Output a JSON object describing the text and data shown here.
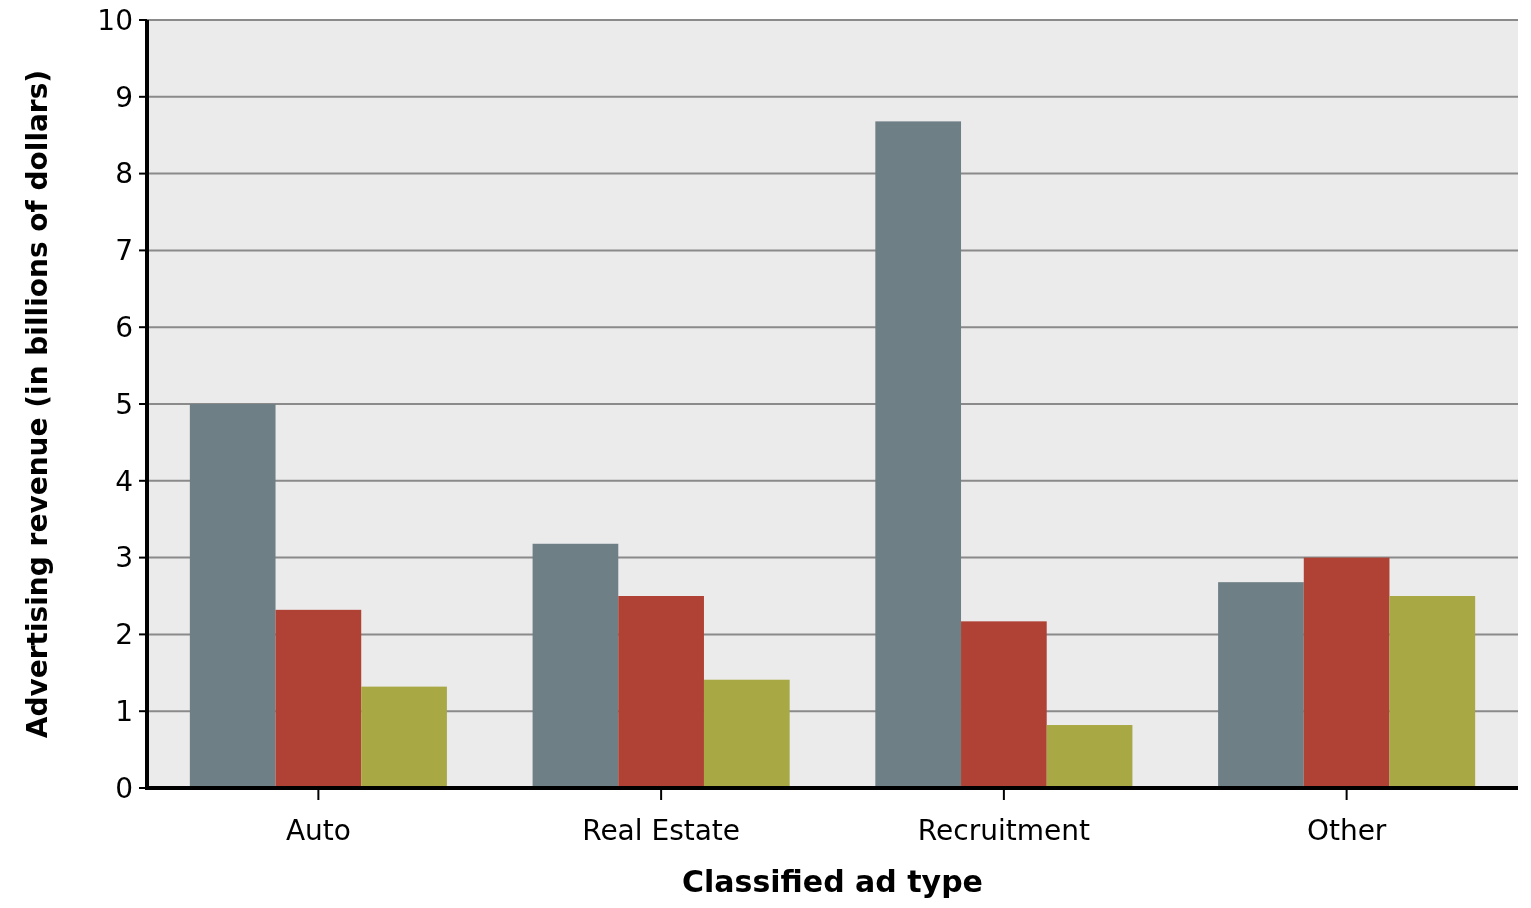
{
  "chart_data": {
    "type": "bar",
    "xlabel": "Classified ad type",
    "ylabel": "Advertising revenue (in billions of dollars)",
    "categories": [
      "Auto",
      "Real Estate",
      "Recruitment",
      "Other"
    ],
    "series": [
      {
        "color": "#6e7f86",
        "values": [
          5.0,
          3.18,
          8.68,
          2.68
        ]
      },
      {
        "color": "#b04235",
        "values": [
          2.32,
          2.5,
          2.17,
          3.0
        ]
      },
      {
        "color": "#a8a845",
        "values": [
          1.32,
          1.41,
          0.82,
          2.5
        ]
      }
    ],
    "ylim": [
      0,
      10
    ],
    "yticks": [
      0,
      1,
      2,
      3,
      4,
      5,
      6,
      7,
      8,
      9,
      10
    ],
    "grid": "y"
  }
}
